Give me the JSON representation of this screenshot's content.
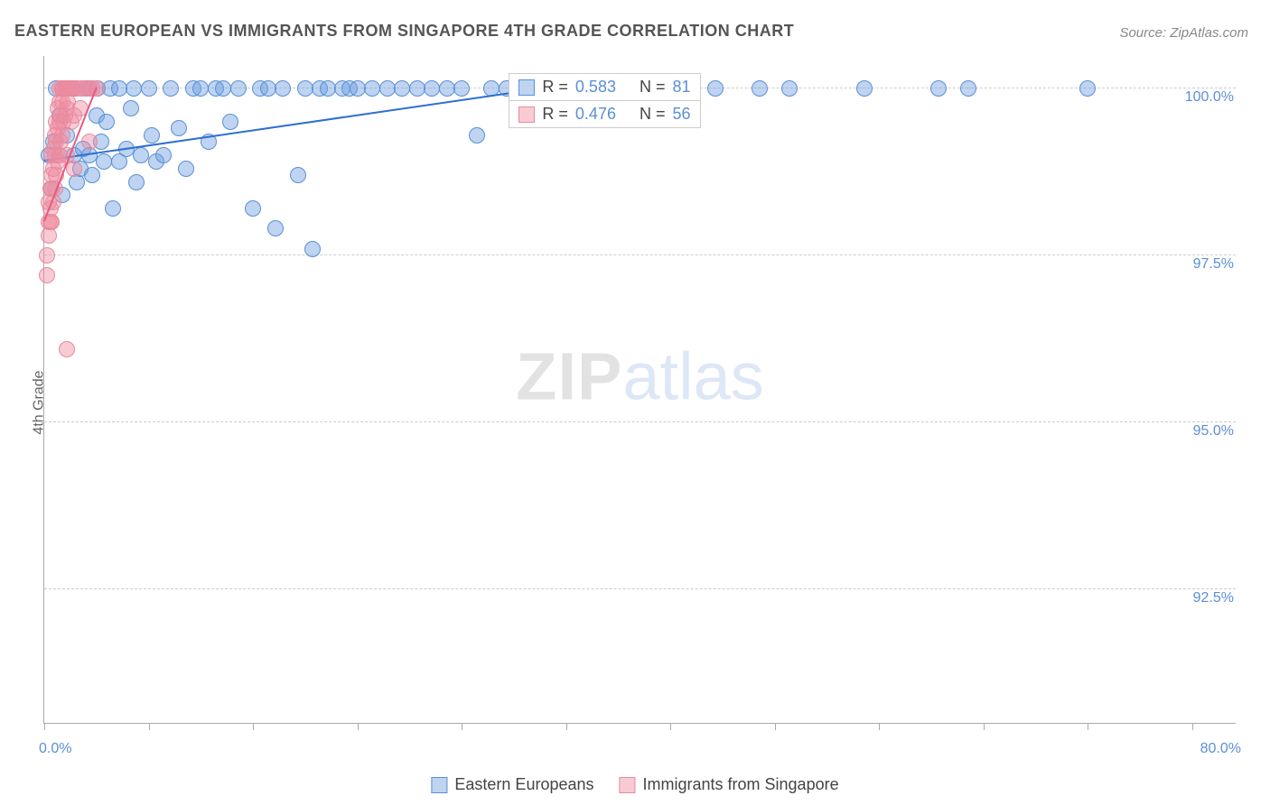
{
  "title": "EASTERN EUROPEAN VS IMMIGRANTS FROM SINGAPORE 4TH GRADE CORRELATION CHART",
  "source_label": "Source: ZipAtlas.com",
  "ylabel": "4th Grade",
  "watermark": {
    "a": "ZIP",
    "b": "atlas"
  },
  "chart": {
    "type": "scatter",
    "xlim": [
      0,
      80
    ],
    "ylim": [
      90.5,
      100.5
    ],
    "x_ticks": [
      0,
      7,
      14,
      21,
      28,
      35,
      42,
      49,
      56,
      63,
      70,
      77
    ],
    "x_labels": {
      "min": "0.0%",
      "max": "80.0%"
    },
    "y_gridlines": [
      92.5,
      95.0,
      97.5,
      100.0
    ],
    "y_labels": [
      "92.5%",
      "95.0%",
      "97.5%",
      "100.0%"
    ],
    "background_color": "#ffffff",
    "grid_color": "#cccccc",
    "axis_color": "#aaaaaa",
    "tick_label_color": "#5b8fd6",
    "marker_radius": 9,
    "series": [
      {
        "name": "Eastern Europeans",
        "fill": "rgba(110,160,225,0.45)",
        "stroke": "#5b8fd6",
        "r_label": "R =",
        "r_value": "0.583",
        "n_label": "N =",
        "n_value": "81",
        "trend": {
          "x1": 0,
          "y1": 98.9,
          "x2": 34,
          "y2": 100.0,
          "color": "#2d6fd0",
          "width": 2
        },
        "points": [
          [
            0.3,
            99.0
          ],
          [
            0.5,
            98.5
          ],
          [
            0.6,
            99.2
          ],
          [
            0.8,
            100.0
          ],
          [
            1.0,
            99.6
          ],
          [
            1.0,
            99.0
          ],
          [
            1.2,
            98.4
          ],
          [
            1.5,
            99.3
          ],
          [
            1.8,
            100.0
          ],
          [
            2.0,
            100.0
          ],
          [
            2.0,
            99.0
          ],
          [
            2.2,
            98.6
          ],
          [
            2.4,
            98.8
          ],
          [
            2.6,
            99.1
          ],
          [
            2.8,
            100.0
          ],
          [
            3.0,
            100.0
          ],
          [
            3.0,
            99.0
          ],
          [
            3.2,
            98.7
          ],
          [
            3.5,
            99.6
          ],
          [
            3.6,
            100.0
          ],
          [
            3.8,
            99.2
          ],
          [
            4.0,
            98.9
          ],
          [
            4.2,
            99.5
          ],
          [
            4.4,
            100.0
          ],
          [
            4.6,
            98.2
          ],
          [
            5.0,
            100.0
          ],
          [
            5.0,
            98.9
          ],
          [
            5.5,
            99.1
          ],
          [
            5.8,
            99.7
          ],
          [
            6.0,
            100.0
          ],
          [
            6.2,
            98.6
          ],
          [
            6.5,
            99.0
          ],
          [
            7.0,
            100.0
          ],
          [
            7.2,
            99.3
          ],
          [
            7.5,
            98.9
          ],
          [
            8.0,
            99.0
          ],
          [
            8.5,
            100.0
          ],
          [
            9.0,
            99.4
          ],
          [
            9.5,
            98.8
          ],
          [
            10.0,
            100.0
          ],
          [
            10.5,
            100.0
          ],
          [
            11.0,
            99.2
          ],
          [
            11.5,
            100.0
          ],
          [
            12.0,
            100.0
          ],
          [
            12.5,
            99.5
          ],
          [
            13.0,
            100.0
          ],
          [
            14.0,
            98.2
          ],
          [
            14.5,
            100.0
          ],
          [
            15.0,
            100.0
          ],
          [
            15.5,
            97.9
          ],
          [
            16.0,
            100.0
          ],
          [
            17.0,
            98.7
          ],
          [
            17.5,
            100.0
          ],
          [
            18.0,
            97.6
          ],
          [
            18.5,
            100.0
          ],
          [
            19.0,
            100.0
          ],
          [
            20.0,
            100.0
          ],
          [
            20.5,
            100.0
          ],
          [
            21.0,
            100.0
          ],
          [
            22.0,
            100.0
          ],
          [
            23.0,
            100.0
          ],
          [
            24.0,
            100.0
          ],
          [
            25.0,
            100.0
          ],
          [
            26.0,
            100.0
          ],
          [
            27.0,
            100.0
          ],
          [
            28.0,
            100.0
          ],
          [
            29.0,
            99.3
          ],
          [
            30.0,
            100.0
          ],
          [
            31.0,
            100.0
          ],
          [
            33.0,
            100.0
          ],
          [
            34.0,
            100.0
          ],
          [
            36.0,
            100.0
          ],
          [
            38.0,
            100.0
          ],
          [
            40.0,
            100.0
          ],
          [
            45.0,
            100.0
          ],
          [
            48.0,
            100.0
          ],
          [
            50.0,
            100.0
          ],
          [
            55.0,
            100.0
          ],
          [
            60.0,
            100.0
          ],
          [
            62.0,
            100.0
          ],
          [
            70.0,
            100.0
          ]
        ]
      },
      {
        "name": "Immigrants from Singapore",
        "fill": "rgba(240,140,160,0.45)",
        "stroke": "#e88aa0",
        "r_label": "R =",
        "r_value": "0.476",
        "n_label": "N =",
        "n_value": "56",
        "trend": {
          "x1": 0,
          "y1": 98.0,
          "x2": 3.5,
          "y2": 100.0,
          "color": "#e85a80",
          "width": 2
        },
        "points": [
          [
            0.2,
            97.2
          ],
          [
            0.2,
            97.5
          ],
          [
            0.3,
            97.8
          ],
          [
            0.3,
            98.0
          ],
          [
            0.3,
            98.3
          ],
          [
            0.4,
            98.0
          ],
          [
            0.4,
            98.5
          ],
          [
            0.4,
            98.2
          ],
          [
            0.5,
            98.7
          ],
          [
            0.5,
            98.0
          ],
          [
            0.5,
            98.5
          ],
          [
            0.5,
            99.0
          ],
          [
            0.6,
            98.3
          ],
          [
            0.6,
            98.8
          ],
          [
            0.6,
            99.1
          ],
          [
            0.7,
            98.5
          ],
          [
            0.7,
            99.0
          ],
          [
            0.7,
            99.3
          ],
          [
            0.8,
            98.7
          ],
          [
            0.8,
            99.2
          ],
          [
            0.8,
            99.5
          ],
          [
            0.9,
            98.9
          ],
          [
            0.9,
            99.4
          ],
          [
            0.9,
            99.7
          ],
          [
            1.0,
            99.0
          ],
          [
            1.0,
            99.5
          ],
          [
            1.0,
            99.8
          ],
          [
            1.0,
            100.0
          ],
          [
            1.1,
            99.2
          ],
          [
            1.1,
            99.6
          ],
          [
            1.2,
            99.3
          ],
          [
            1.2,
            99.8
          ],
          [
            1.2,
            100.0
          ],
          [
            1.3,
            99.5
          ],
          [
            1.3,
            100.0
          ],
          [
            1.4,
            99.6
          ],
          [
            1.4,
            100.0
          ],
          [
            1.5,
            99.0
          ],
          [
            1.5,
            99.7
          ],
          [
            1.5,
            100.0
          ],
          [
            1.6,
            99.8
          ],
          [
            1.6,
            100.0
          ],
          [
            1.8,
            99.5
          ],
          [
            1.8,
            100.0
          ],
          [
            2.0,
            98.8
          ],
          [
            2.0,
            99.6
          ],
          [
            2.0,
            100.0
          ],
          [
            2.2,
            100.0
          ],
          [
            2.4,
            99.7
          ],
          [
            2.5,
            100.0
          ],
          [
            2.8,
            100.0
          ],
          [
            3.0,
            99.2
          ],
          [
            3.0,
            100.0
          ],
          [
            3.2,
            100.0
          ],
          [
            3.5,
            100.0
          ],
          [
            1.5,
            96.1
          ]
        ]
      }
    ],
    "stats_box": {
      "left_pct": 39,
      "top_y": 100.0
    },
    "legend_swatch_size": 18
  }
}
